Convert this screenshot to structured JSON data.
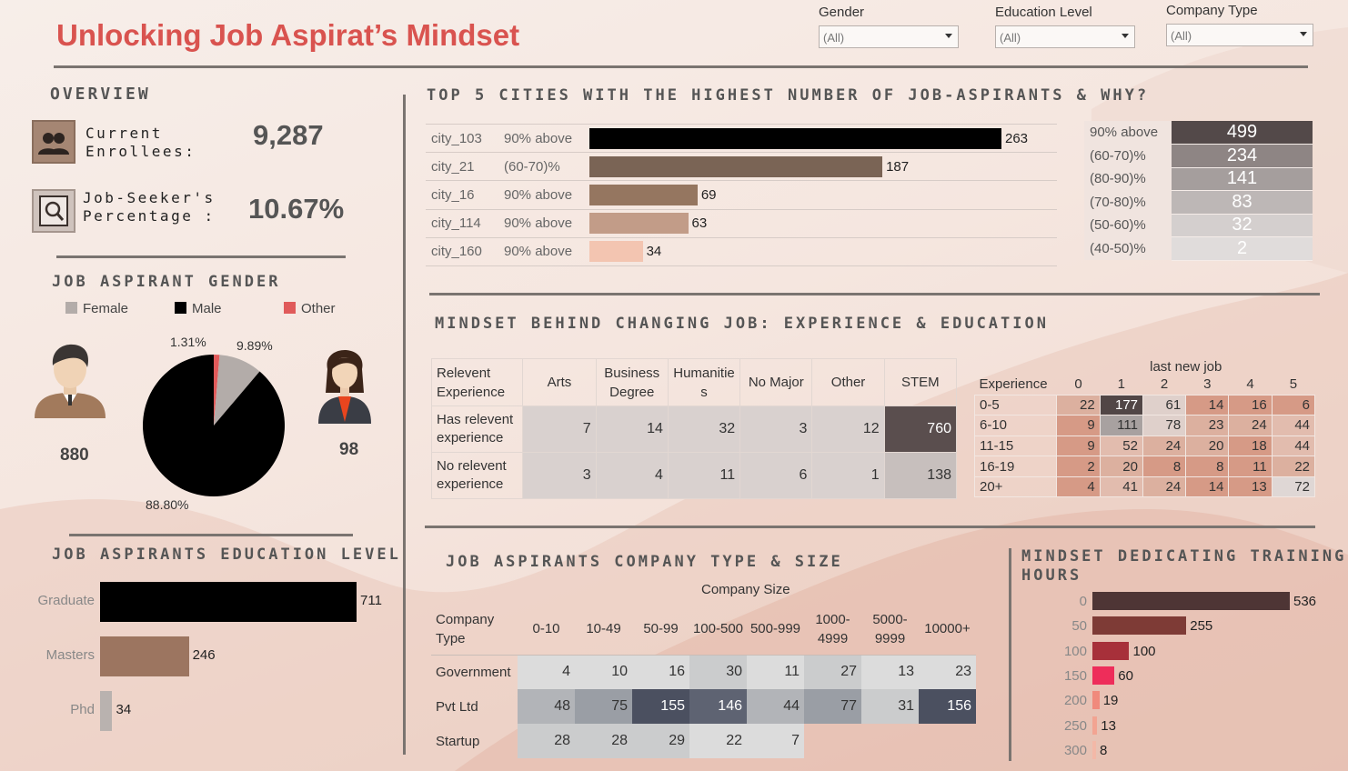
{
  "title": "Unlocking Job Aspirat’s Mindset",
  "filters": [
    {
      "label": "Gender",
      "value": "(All)"
    },
    {
      "label": "Education Level",
      "value": "(All)"
    },
    {
      "label": "Company Type",
      "value": "(All)"
    }
  ],
  "overview": {
    "heading": "OVERVIEW",
    "enrollees_label_1": "Current",
    "enrollees_label_2": "Enrollees:",
    "enrollees_value": "9,287",
    "seeker_label_1": "Job-Seeker's",
    "seeker_label_2": "Percentage :",
    "seeker_value": "10.67%"
  },
  "gender": {
    "heading": "JOB ASPIRANT GENDER",
    "legend": [
      "Female",
      "Male",
      "Other"
    ],
    "colors": {
      "Female": "#b3aca9",
      "Male": "#000000",
      "Other": "#e05a5a"
    },
    "male_count": "880",
    "female_count": "98",
    "pct_other": "1.31%",
    "pct_female": "9.89%",
    "pct_male": "88.80%"
  },
  "education": {
    "heading": "JOB ASPIRANTS EDUCATION LEVEL",
    "colors": [
      "#000000",
      "#9c7560",
      "#b9b2af"
    ]
  },
  "cities": {
    "heading": "TOP 5 CITIES WITH THE HIGHEST NUMBER OF JOB-ASPIRANTS & WHY?",
    "colors": [
      "#000000",
      "#7a6455",
      "#957660",
      "#c29c88",
      "#f3c5b1"
    ],
    "summary_colors": [
      "#534949",
      "#8e8584",
      "#a59e9d",
      "#bdb7b6",
      "#d4cfce",
      "#e0dcdb"
    ]
  },
  "mindset": {
    "heading": "MINDSET BEHIND CHANGING JOB: EXPERIENCE & EDUCATION",
    "matrix_corner_1": "Relevent",
    "matrix_corner_2": "Experience",
    "matrix_cols": [
      "Arts",
      "Business Degree",
      "Humanities",
      "No Major",
      "Other",
      "STEM"
    ],
    "matrix_col_display": [
      "Arts",
      "Business|Degree",
      "Humanitie|s",
      "No Major",
      "Other",
      "STEM"
    ],
    "matrix_rows": [
      {
        "label_1": "Has relevent",
        "label_2": "experience",
        "values": [
          "7",
          "14",
          "32",
          "3",
          "12",
          "760"
        ]
      },
      {
        "label_1": "No relevent",
        "label_2": "experience",
        "values": [
          "3",
          "4",
          "11",
          "6",
          "1",
          "138"
        ]
      }
    ],
    "hm_title": "last new job",
    "hm_corner": "Experience",
    "hm_cols": [
      "0",
      "1",
      "2",
      "3",
      "4",
      "5"
    ],
    "hm_rows": [
      {
        "label": "0-5",
        "values": [
          "22",
          "177",
          "61",
          "14",
          "16",
          "6"
        ]
      },
      {
        "label": "6-10",
        "values": [
          "9",
          "111",
          "78",
          "23",
          "24",
          "44"
        ]
      },
      {
        "label": "11-15",
        "values": [
          "9",
          "52",
          "24",
          "20",
          "18",
          "44"
        ]
      },
      {
        "label": "16-19",
        "values": [
          "2",
          "20",
          "8",
          "8",
          "11",
          "22"
        ]
      },
      {
        "label": "20+",
        "values": [
          "4",
          "41",
          "24",
          "14",
          "13",
          "72"
        ]
      }
    ]
  },
  "company": {
    "heading": "JOB ASPIRANTS COMPANY TYPE & SIZE",
    "size_title": "Company Size",
    "corner_1": "Company",
    "corner_2": "Type",
    "cols": [
      "0-10",
      "10-49",
      "50-99",
      "100-500",
      "500-999",
      "1000-4999",
      "5000-9999",
      "10000+"
    ],
    "col_display": [
      "0-10",
      "10-49",
      "50-99",
      "100-500",
      "500-999",
      "1000-|4999",
      "5000-|9999",
      "10000+"
    ],
    "rows": [
      {
        "label": "Government",
        "values": [
          "4",
          "10",
          "16",
          "30",
          "11",
          "27",
          "13",
          "23"
        ]
      },
      {
        "label": "Pvt Ltd",
        "values": [
          "48",
          "75",
          "155",
          "146",
          "44",
          "77",
          "31",
          "156"
        ]
      },
      {
        "label": "Startup",
        "values": [
          "28",
          "28",
          "29",
          "22",
          "7",
          "",
          "",
          ""
        ]
      }
    ]
  },
  "training": {
    "heading_1": "MINDSET DEDICATING TRAINING",
    "heading_2": "HOURS",
    "colors": [
      "#4e3535",
      "#7e3b36",
      "#a7303a",
      "#ee2d5a",
      "#f08a7c",
      "#f2a492",
      "#f3b8a7"
    ]
  },
  "chart_data": [
    {
      "type": "pie",
      "title": "JOB ASPIRANT GENDER",
      "categories": [
        "Female",
        "Male",
        "Other"
      ],
      "values": [
        9.89,
        88.8,
        1.31
      ],
      "counts": {
        "Male": 880,
        "Female": 98
      }
    },
    {
      "type": "bar",
      "title": "JOB ASPIRANTS EDUCATION LEVEL",
      "orientation": "horizontal",
      "categories": [
        "Graduate",
        "Masters",
        "Phd"
      ],
      "values": [
        711,
        246,
        34
      ]
    },
    {
      "type": "bar",
      "title": "TOP 5 CITIES WITH THE HIGHEST NUMBER OF JOB-ASPIRANTS & WHY?",
      "orientation": "horizontal",
      "categories": [
        "city_103",
        "city_21",
        "city_16",
        "city_114",
        "city_160"
      ],
      "reasons": [
        "90% above",
        "(60-70)%",
        "90% above",
        "90% above",
        "90% above"
      ],
      "values": [
        263,
        187,
        69,
        63,
        34
      ]
    },
    {
      "type": "table",
      "categories": [
        "90% above",
        "(60-70)%",
        "(80-90)%",
        "(70-80)%",
        "(50-60)%",
        "(40-50)%"
      ],
      "values": [
        499,
        234,
        141,
        83,
        32,
        2
      ]
    },
    {
      "type": "bar",
      "title": "MINDSET DEDICATING TRAINING HOURS",
      "orientation": "horizontal",
      "categories": [
        "0",
        "50",
        "100",
        "150",
        "200",
        "250",
        "300"
      ],
      "values": [
        536,
        255,
        100,
        60,
        19,
        13,
        8
      ]
    }
  ]
}
